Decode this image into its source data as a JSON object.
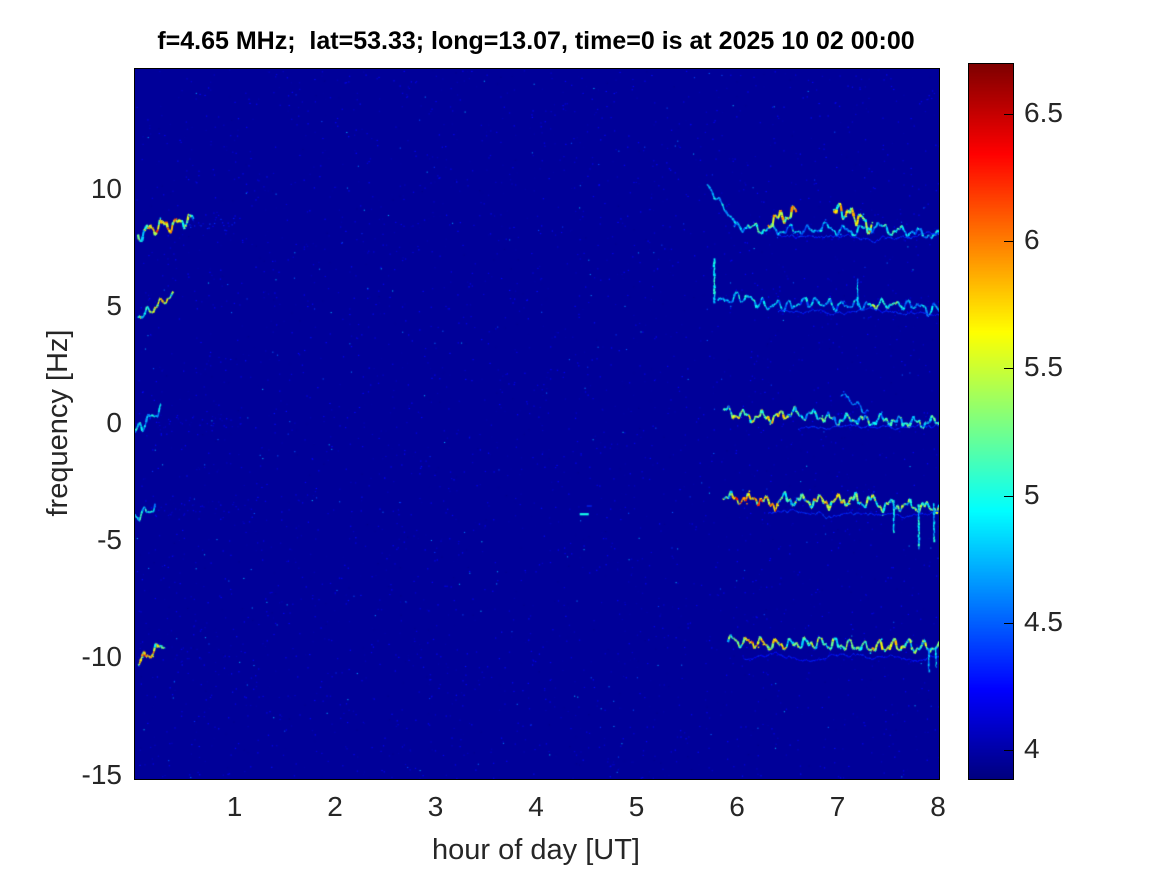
{
  "title": "f=4.65 MHz;  lat=53.33; long=13.07, time=0 is at 2025 10 02 00:00",
  "chart_data": {
    "type": "heatmap",
    "title": "f=4.65 MHz;  lat=53.33; long=13.07, time=0 is at 2025 10 02 00:00",
    "xlabel": "hour of day [UT]",
    "ylabel": "frequency [Hz]",
    "xlim": [
      0,
      8
    ],
    "ylim": [
      -15.1,
      15.2
    ],
    "xticks": [
      "1",
      "2",
      "3",
      "4",
      "5",
      "6",
      "7",
      "8"
    ],
    "xtick_values": [
      1,
      2,
      3,
      4,
      5,
      6,
      7,
      8
    ],
    "yticks": [
      "10",
      "5",
      "0",
      "-5",
      "-10",
      "-15"
    ],
    "ytick_values": [
      10,
      5,
      0,
      -5,
      -10,
      -15
    ],
    "grid": false,
    "colormap": "jet",
    "background_value": 3.96,
    "background_color": "#000090",
    "colorbar": {
      "position": "right",
      "ticks": [
        "6.5",
        "6",
        "5.5",
        "5",
        "4.5",
        "4"
      ],
      "tick_values": [
        6.5,
        6,
        5.5,
        5,
        4.5,
        4
      ],
      "range": [
        3.89,
        6.7
      ]
    },
    "description": "Doppler spectrogram: horizontal wiggly spectral traces near +8.4, +5, 0, -3.5 and -9.6 Hz, visible during hours 0-0.6 and 5.7-8, on a dark blue noise background",
    "traces": [
      {
        "name": "left-8.5",
        "x0": 0.03,
        "x1": 0.58,
        "fa": 8.15,
        "fb": 8.75,
        "amp": 0.4,
        "v": 5.15,
        "vj": 0.45,
        "w": 2.2,
        "hot": [
          [
            0.12,
            0.45,
            0.55
          ]
        ]
      },
      {
        "name": "left-8.5-tail",
        "x0": 0.5,
        "x1": 1.0,
        "fa": 8.6,
        "fb": 8.6,
        "amp": 0.35,
        "v": 4.2,
        "vj": 0.2,
        "w": 1.2,
        "speckle": 0.5
      },
      {
        "name": "left-5",
        "x0": 0.03,
        "x1": 0.38,
        "fa": 4.65,
        "fb": 5.5,
        "amp": 0.22,
        "v": 5.15,
        "vj": 0.4,
        "w": 2.0,
        "hot": [
          [
            0.18,
            0.36,
            0.35
          ]
        ]
      },
      {
        "name": "left-0",
        "x0": 0.0,
        "x1": 0.26,
        "fa": -0.25,
        "fb": 0.5,
        "amp": 0.3,
        "v": 4.8,
        "vj": 0.3,
        "w": 1.8
      },
      {
        "name": "left-0-tail",
        "x0": 0.2,
        "x1": 1.05,
        "fa": 0.1,
        "fb": 0.1,
        "amp": 0.4,
        "v": 4.12,
        "vj": 0.15,
        "w": 1.0,
        "speckle": 0.35
      },
      {
        "name": "left-m3.5",
        "x0": 0.0,
        "x1": 0.2,
        "fa": -3.95,
        "fb": -3.3,
        "amp": 0.3,
        "v": 4.85,
        "vj": 0.3,
        "w": 1.8
      },
      {
        "name": "left-m3.5-tail",
        "x0": 0.15,
        "x1": 1.2,
        "fa": -3.6,
        "fb": -3.6,
        "amp": 0.4,
        "v": 4.12,
        "vj": 0.15,
        "w": 1.0,
        "speckle": 0.35
      },
      {
        "name": "left-m9.7",
        "x0": 0.03,
        "x1": 0.3,
        "fa": -10.0,
        "fb": -9.35,
        "amp": 0.28,
        "v": 5.3,
        "vj": 0.45,
        "w": 2.0,
        "hot": [
          [
            0.04,
            0.2,
            0.4
          ]
        ]
      },
      {
        "name": "left-m9.7-tail",
        "x0": 0.25,
        "x1": 1.1,
        "fa": -9.7,
        "fb": -9.7,
        "amp": 0.4,
        "v": 4.1,
        "vj": 0.15,
        "w": 1.0,
        "speckle": 0.3
      },
      {
        "name": "right-8.4-entry",
        "x0": 5.69,
        "x1": 5.98,
        "fa": 10.3,
        "fb": 8.5,
        "amp": 0.12,
        "v": 4.8,
        "vj": 0.25,
        "w": 1.8
      },
      {
        "name": "right-8.4",
        "x0": 5.96,
        "x1": 8.0,
        "fa": 8.45,
        "fb": 8.3,
        "amp": 0.28,
        "v": 4.72,
        "vj": 0.35,
        "w": 1.8,
        "hot": [
          [
            6.1,
            6.3,
            0.3
          ],
          [
            7.45,
            7.65,
            0.25
          ]
        ]
      },
      {
        "name": "right-8.4-burst1",
        "x0": 6.3,
        "x1": 6.58,
        "fa": 8.6,
        "fb": 9.2,
        "amp": 0.4,
        "v": 5.5,
        "vj": 0.55,
        "w": 2.3
      },
      {
        "name": "right-8.4-burst2",
        "x0": 6.95,
        "x1": 7.33,
        "fa": 9.25,
        "fb": 8.4,
        "amp": 0.45,
        "v": 5.45,
        "vj": 0.6,
        "w": 2.3
      },
      {
        "name": "right-8.2-line",
        "x0": 6.4,
        "x1": 8.0,
        "fa": 8.12,
        "fb": 8.12,
        "amp": 0.03,
        "v": 4.35,
        "vj": 0.12,
        "w": 1.0
      },
      {
        "name": "right-5",
        "x0": 5.8,
        "x1": 8.0,
        "fa": 5.35,
        "fb": 5.0,
        "amp": 0.28,
        "v": 4.7,
        "vj": 0.35,
        "w": 1.8,
        "hot": [
          [
            7.3,
            7.6,
            0.45
          ],
          [
            6.0,
            6.2,
            0.2
          ]
        ]
      },
      {
        "name": "right-4.9-line",
        "x0": 6.4,
        "x1": 8.0,
        "fa": 4.82,
        "fb": 4.78,
        "amp": 0.03,
        "v": 4.35,
        "vj": 0.1,
        "w": 1.0
      },
      {
        "name": "right-0",
        "x0": 5.85,
        "x1": 8.0,
        "fa": 0.55,
        "fb": 0.1,
        "amp": 0.3,
        "v": 4.95,
        "vj": 0.45,
        "w": 2.0,
        "hot": [
          [
            5.95,
            6.5,
            0.4
          ]
        ]
      },
      {
        "name": "right-0-line",
        "x0": 6.6,
        "x1": 8.0,
        "fa": -0.15,
        "fb": -0.15,
        "amp": 0.03,
        "v": 4.35,
        "vj": 0.1,
        "w": 1.0
      },
      {
        "name": "right-0-wisp",
        "x0": 7.02,
        "x1": 7.3,
        "fa": 1.35,
        "fb": 0.5,
        "amp": 0.15,
        "v": 4.55,
        "vj": 0.2,
        "w": 1.4
      },
      {
        "name": "right-m3.4",
        "x0": 5.85,
        "x1": 8.0,
        "fa": -3.05,
        "fb": -3.6,
        "amp": 0.33,
        "v": 5.1,
        "vj": 0.5,
        "w": 2.0,
        "hot": [
          [
            5.95,
            6.4,
            0.65
          ],
          [
            6.75,
            7.15,
            0.35
          ]
        ]
      },
      {
        "name": "right-m3.7-line",
        "x0": 6.3,
        "x1": 8.0,
        "fa": -3.78,
        "fb": -3.78,
        "amp": 0.03,
        "v": 4.35,
        "vj": 0.1,
        "w": 1.0
      },
      {
        "name": "right-m9.4",
        "x0": 5.9,
        "x1": 8.0,
        "fa": -9.2,
        "fb": -9.6,
        "amp": 0.33,
        "v": 5.15,
        "vj": 0.45,
        "w": 2.0,
        "hot": [
          [
            6.05,
            6.5,
            0.45
          ],
          [
            7.3,
            7.65,
            0.35
          ]
        ]
      },
      {
        "name": "right-m9.9-line",
        "x0": 6.05,
        "x1": 8.0,
        "fa": -9.92,
        "fb": -9.92,
        "amp": 0.03,
        "v": 4.3,
        "vj": 0.1,
        "w": 1.0
      }
    ],
    "verticals": [
      {
        "x": 5.765,
        "f0": 5.2,
        "f1": 7.1,
        "v": 4.95,
        "w": 2.0
      },
      {
        "x": 7.19,
        "f0": 5.1,
        "f1": 6.2,
        "v": 4.7,
        "w": 1.6
      },
      {
        "x": 7.55,
        "f0": -4.6,
        "f1": -3.3,
        "v": 4.8,
        "w": 1.6
      },
      {
        "x": 7.8,
        "f0": -5.3,
        "f1": -3.4,
        "v": 4.9,
        "w": 1.8
      },
      {
        "x": 7.95,
        "f0": -5.0,
        "f1": -3.4,
        "v": 4.8,
        "w": 1.6
      },
      {
        "x": 7.9,
        "f0": -10.55,
        "f1": -9.6,
        "v": 4.7,
        "w": 1.5
      },
      {
        "x": 7.97,
        "f0": -10.35,
        "f1": -9.5,
        "v": 4.75,
        "w": 1.5
      }
    ],
    "blips": [
      {
        "x": 4.47,
        "f": -3.8,
        "v": 5.0,
        "len": 0.09,
        "w": 2.2
      },
      {
        "x": 4.52,
        "f": -3.45,
        "v": 4.35,
        "len": 0.05,
        "w": 1.2
      }
    ],
    "noise": {
      "count": 3800,
      "vmin": 3.92,
      "vmax": 4.28,
      "bright_count": 260,
      "bright_vmin": 4.35,
      "bright_vmax": 4.75
    }
  }
}
